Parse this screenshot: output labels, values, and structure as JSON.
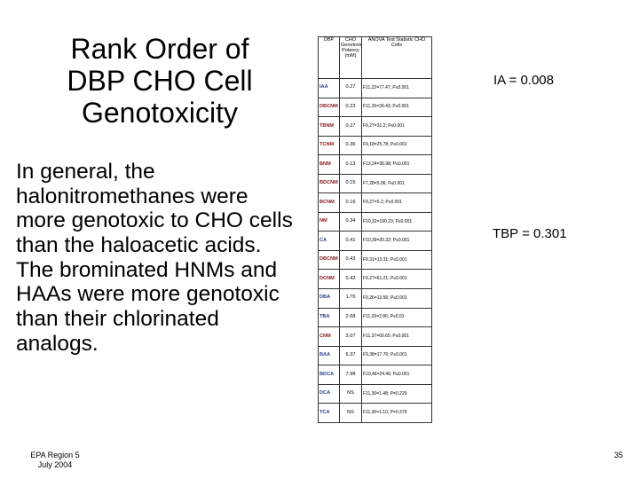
{
  "slide": {
    "title": "Rank Order of\nDBP CHO Cell\nGenotoxicity",
    "body_paragraphs": [
      "In general, the halonitromethanes were more genotoxic to CHO cells than the haloacetic acids.",
      "The brominated HNMs and HAAs were more genotoxic than their chlorinated analogs."
    ],
    "footer": {
      "line1": "EPA Region 5",
      "line2": "July 2004"
    },
    "page_number": "35"
  },
  "stats": {
    "ia": "IA = 0.008",
    "tbp": "TBP = 0.301"
  },
  "table": {
    "headers": {
      "dbp": "DBP",
      "cho": "CHO Genotoxic Potency (mM)",
      "anova": "ANOVA Test Statistic CHO Cells"
    },
    "rows": [
      {
        "dbp": "IAA",
        "conc": "0.27",
        "anova": "F11,22=77.47; P≤0.001",
        "color": "#2b3f8c"
      },
      {
        "dbp": "DBCNM",
        "conc": "0.23",
        "anova": "F11,26=39.43; P≤0.001",
        "color": "#8b1a1a"
      },
      {
        "dbp": "TBNM",
        "conc": "0.27",
        "anova": "F9,27=31.2; P≤0.001",
        "color": "#8b1a1a"
      },
      {
        "dbp": "TCNM",
        "conc": "0.36",
        "anova": "F9,18=25.78; P≤0.001",
        "color": "#8b1a1a"
      },
      {
        "dbp": "BNM",
        "conc": "0.13",
        "anova": "F13,24=36.98; P≤0.001",
        "color": "#8b1a1a"
      },
      {
        "dbp": "BDCNM",
        "conc": "0.15",
        "anova": "F7,28=5.06; P≤0.001",
        "color": "#8b1a1a"
      },
      {
        "dbp": "BCNM",
        "conc": "0.16",
        "anova": "F9,27=5.2; P≤0.001",
        "color": "#8b1a1a"
      },
      {
        "dbp": "NM",
        "conc": "0.34",
        "anova": "F10,32=190.23; P≤0.001",
        "color": "#8b1a1a"
      },
      {
        "dbp": "CA",
        "conc": "0.41",
        "anova": "F10,39=20.32; P≤0.001",
        "color": "#2b3f8c"
      },
      {
        "dbp": "DBCNM",
        "conc": "0.43",
        "anova": "F9,31=13.31; P≤0.001",
        "color": "#8b1a1a"
      },
      {
        "dbp": "DCNM",
        "conc": "0.42",
        "anova": "F9,27=61.21; P≤0.001",
        "color": "#8b1a1a"
      },
      {
        "dbp": "DBA",
        "conc": "1.76",
        "anova": "F9,26=13.56; P≤0.001",
        "color": "#2b3f8c"
      },
      {
        "dbp": "TBA",
        "conc": "2.68",
        "anova": "F11,33=2.86; P≤0.01",
        "color": "#2b3f8c"
      },
      {
        "dbp": "CNM",
        "conc": "3.07",
        "anova": "F11,37=60.65; P≤0.001",
        "color": "#8b1a1a"
      },
      {
        "dbp": "BAA",
        "conc": "6.37",
        "anova": "F9,38=17.76; P≤0.001",
        "color": "#2b3f8c"
      },
      {
        "dbp": "BDCA",
        "conc": "7.98",
        "anova": "F10,46=24.46; P≤0.001",
        "color": "#2b3f8c"
      },
      {
        "dbp": "DCA",
        "conc": "NS",
        "anova": "F11,30=1.48; P=0.229",
        "color": "#2b3f8c"
      },
      {
        "dbp": "TCA",
        "conc": "NS",
        "anova": "F11,30=1.10; P=0.379",
        "color": "#2b3f8c"
      }
    ]
  }
}
